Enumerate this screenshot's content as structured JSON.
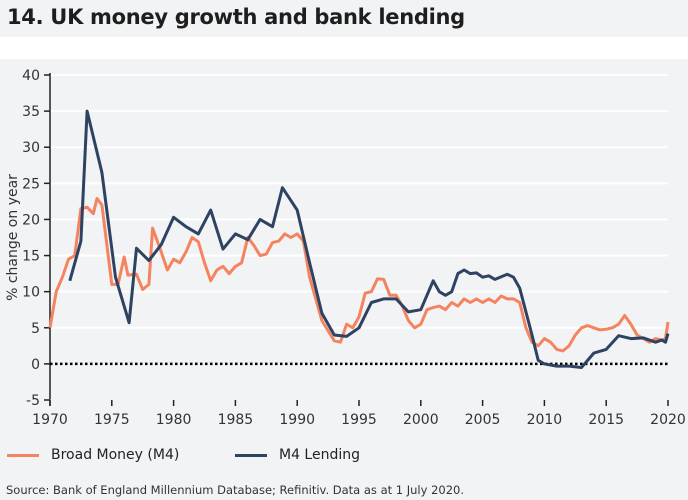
{
  "title": "14. UK money growth and bank lending",
  "source": "Source: Bank of England Millennium Database; Refinitiv. Data as at 1 July 2020.",
  "chart_data": {
    "type": "line",
    "title": "14. UK money growth and bank lending",
    "xlabel": "",
    "ylabel": "% change on year",
    "xlim": [
      1970,
      2020
    ],
    "ylim": [
      -5,
      40
    ],
    "xticks": [
      "1970",
      "1975",
      "1980",
      "1985",
      "1990",
      "1995",
      "2000",
      "2005",
      "2010",
      "2015",
      "2020"
    ],
    "yticks": [
      "-5",
      "0",
      "5",
      "10",
      "15",
      "20",
      "25",
      "30",
      "35",
      "40"
    ],
    "grid": true,
    "zero_line": "dotted",
    "legend": "bottom-left",
    "series": [
      {
        "name": "Broad Money (M4)",
        "color": "#f4845f",
        "points": [
          [
            1970,
            5
          ],
          [
            1970.5,
            10
          ],
          [
            1971,
            12
          ],
          [
            1971.5,
            14.5
          ],
          [
            1972,
            15
          ],
          [
            1972.5,
            21.5
          ],
          [
            1973,
            21.7
          ],
          [
            1973.5,
            20.8
          ],
          [
            1973.8,
            22.9
          ],
          [
            1974.2,
            22
          ],
          [
            1975,
            11
          ],
          [
            1975.5,
            11
          ],
          [
            1976,
            14.8
          ],
          [
            1976.3,
            12.3
          ],
          [
            1977,
            12.4
          ],
          [
            1977.5,
            10.3
          ],
          [
            1978,
            11
          ],
          [
            1978.3,
            18.8
          ],
          [
            1979,
            15.5
          ],
          [
            1979.5,
            13
          ],
          [
            1980,
            14.5
          ],
          [
            1980.5,
            14
          ],
          [
            1981,
            15.5
          ],
          [
            1981.5,
            17.5
          ],
          [
            1982,
            16.9
          ],
          [
            1982.5,
            14
          ],
          [
            1983,
            11.5
          ],
          [
            1983.5,
            13
          ],
          [
            1984,
            13.5
          ],
          [
            1984.5,
            12.5
          ],
          [
            1985,
            13.5
          ],
          [
            1985.5,
            14
          ],
          [
            1986,
            17.5
          ],
          [
            1986.5,
            16.4
          ],
          [
            1987,
            15
          ],
          [
            1987.5,
            15.2
          ],
          [
            1988,
            16.8
          ],
          [
            1988.5,
            17
          ],
          [
            1989,
            18
          ],
          [
            1989.5,
            17.5
          ],
          [
            1990,
            18
          ],
          [
            1990.5,
            17
          ],
          [
            1991,
            12
          ],
          [
            1992,
            6
          ],
          [
            1993,
            3.2
          ],
          [
            1993.5,
            3
          ],
          [
            1994,
            5.5
          ],
          [
            1994.5,
            5
          ],
          [
            1995,
            6.5
          ],
          [
            1995.5,
            9.8
          ],
          [
            1996,
            10
          ],
          [
            1996.5,
            11.8
          ],
          [
            1997,
            11.7
          ],
          [
            1997.5,
            9.5
          ],
          [
            1998,
            9.5
          ],
          [
            1998.5,
            8
          ],
          [
            1999,
            6
          ],
          [
            1999.5,
            5
          ],
          [
            2000,
            5.5
          ],
          [
            2000.5,
            7.5
          ],
          [
            2001,
            7.8
          ],
          [
            2001.5,
            8
          ],
          [
            2002,
            7.5
          ],
          [
            2002.5,
            8.5
          ],
          [
            2003,
            8
          ],
          [
            2003.5,
            9
          ],
          [
            2004,
            8.5
          ],
          [
            2004.5,
            9
          ],
          [
            2005,
            8.5
          ],
          [
            2005.5,
            9
          ],
          [
            2006,
            8.5
          ],
          [
            2006.5,
            9.4
          ],
          [
            2007,
            9
          ],
          [
            2007.5,
            9
          ],
          [
            2008,
            8.5
          ],
          [
            2008.5,
            5
          ],
          [
            2009,
            3
          ],
          [
            2009.5,
            2.5
          ],
          [
            2010,
            3.5
          ],
          [
            2010.5,
            3
          ],
          [
            2011,
            2
          ],
          [
            2011.5,
            1.8
          ],
          [
            2012,
            2.5
          ],
          [
            2012.5,
            4
          ],
          [
            2013,
            5
          ],
          [
            2013.5,
            5.3
          ],
          [
            2014,
            5
          ],
          [
            2014.5,
            4.7
          ],
          [
            2015,
            4.8
          ],
          [
            2015.5,
            5
          ],
          [
            2016,
            5.5
          ],
          [
            2016.5,
            6.7
          ],
          [
            2017,
            5.5
          ],
          [
            2017.5,
            4
          ],
          [
            2018,
            3.5
          ],
          [
            2018.5,
            3
          ],
          [
            2019,
            3.5
          ],
          [
            2019.5,
            3.3
          ],
          [
            2019.8,
            3.5
          ],
          [
            2020,
            5.8
          ]
        ]
      },
      {
        "name": "M4 Lending",
        "color": "#2e4262",
        "points": [
          [
            1971.6,
            11.5
          ],
          [
            1972.5,
            17
          ],
          [
            1973,
            35
          ],
          [
            1974.2,
            26.5
          ],
          [
            1975.3,
            12
          ],
          [
            1976.4,
            5.7
          ],
          [
            1977,
            16
          ],
          [
            1978,
            14.3
          ],
          [
            1979,
            16.5
          ],
          [
            1980,
            20.3
          ],
          [
            1981,
            19
          ],
          [
            1982,
            18
          ],
          [
            1983,
            21.3
          ],
          [
            1984,
            15.9
          ],
          [
            1985,
            18
          ],
          [
            1986,
            17.2
          ],
          [
            1987,
            20
          ],
          [
            1988,
            19
          ],
          [
            1988.8,
            24.4
          ],
          [
            1990,
            21.3
          ],
          [
            1991,
            14
          ],
          [
            1992,
            7
          ],
          [
            1993,
            4
          ],
          [
            1994,
            3.8
          ],
          [
            1995,
            5
          ],
          [
            1996,
            8.5
          ],
          [
            1997,
            9
          ],
          [
            1998,
            9
          ],
          [
            1999,
            7.2
          ],
          [
            2000,
            7.5
          ],
          [
            2001,
            11.5
          ],
          [
            2001.5,
            10
          ],
          [
            2002,
            9.5
          ],
          [
            2002.5,
            10
          ],
          [
            2003,
            12.5
          ],
          [
            2003.5,
            13
          ],
          [
            2004,
            12.5
          ],
          [
            2004.5,
            12.6
          ],
          [
            2005,
            12
          ],
          [
            2005.5,
            12.2
          ],
          [
            2006,
            11.7
          ],
          [
            2007,
            12.4
          ],
          [
            2007.5,
            12
          ],
          [
            2008,
            10.5
          ],
          [
            2009,
            4
          ],
          [
            2009.5,
            0.5
          ],
          [
            2010,
            0
          ],
          [
            2011,
            -0.3
          ],
          [
            2012,
            -0.3
          ],
          [
            2013,
            -0.5
          ],
          [
            2014,
            1.5
          ],
          [
            2015,
            2
          ],
          [
            2016,
            3.9
          ],
          [
            2017,
            3.5
          ],
          [
            2018,
            3.6
          ],
          [
            2019,
            3
          ],
          [
            2019.5,
            3.3
          ],
          [
            2019.8,
            3
          ],
          [
            2020,
            4.2
          ]
        ]
      }
    ]
  }
}
